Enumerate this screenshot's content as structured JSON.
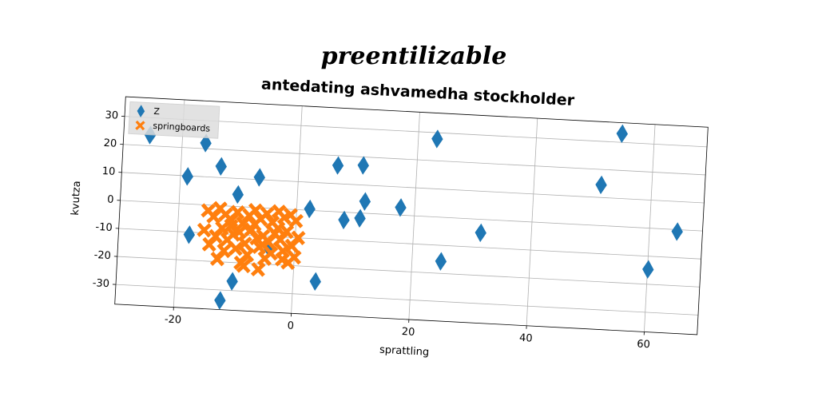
{
  "chart_data": {
    "type": "scatter",
    "suptitle": "preentilizable",
    "title": "antedating ashvamedha stockholder",
    "x_label": "sprattling",
    "y_label": "kvutza",
    "xlim": [
      -30,
      69
    ],
    "ylim": [
      -37,
      37
    ],
    "xticks": [
      -20,
      0,
      20,
      40,
      60
    ],
    "yticks": [
      -30,
      -20,
      -10,
      0,
      10,
      20,
      30
    ],
    "grid": true,
    "legend": "upper left",
    "series": [
      {
        "name": "Z",
        "color": "#1f77b4",
        "marker": "diamond",
        "x": [
          -25.5,
          -16,
          -18.8,
          -13.2,
          -10.1,
          -6.6,
          -18,
          -10.3,
          -12.2,
          -4.3,
          2.2,
          3.8,
          6.6,
          8.1,
          10.8,
          10.9,
          11.5,
          17.6,
          23.2,
          24.9,
          31.4,
          51.4,
          54.5,
          60.1,
          64.7
        ],
        "values": [
          23.8,
          22,
          9.8,
          14,
          4.3,
          10.8,
          -10.9,
          -26.7,
          -33.7,
          -14.3,
          0.5,
          -25.2,
          16.5,
          -2.8,
          -1.9,
          17,
          4.2,
          2.7,
          27.8,
          -15.7,
          -4.8,
          14.5,
          33.1,
          -14.7,
          -0.7
        ]
      },
      {
        "name": "springboards",
        "color": "#ff7f0e",
        "marker": "x",
        "x": [
          -15,
          -14,
          -13,
          -12,
          -11,
          -10,
          -9,
          -8,
          -7,
          -6,
          -5,
          -4,
          -3,
          -2,
          -1,
          0,
          -15.5,
          -13.5,
          -12.5,
          -11.5,
          -10.5,
          -9.5,
          -8.5,
          -7.5,
          -6.5,
          -5.5,
          -4.5,
          -3.5,
          -2.5,
          -1.5,
          -0.5,
          0.5,
          -14.5,
          -12,
          -10,
          -8,
          -6,
          -4,
          -2,
          0,
          -13,
          -9,
          -5,
          -1,
          -11,
          -7,
          -3,
          -8.5,
          -6,
          -2
        ],
        "values": [
          -2,
          -4,
          -1,
          -3,
          -5,
          -2,
          -6,
          -3,
          -1,
          -4,
          -2,
          -5,
          -1,
          -3,
          -2,
          -4,
          -9,
          -11,
          -8,
          -12,
          -10,
          -9,
          -13,
          -8,
          -11,
          -10,
          -12,
          -9,
          -11,
          -8,
          -13,
          -10,
          -14,
          -16,
          -15,
          -17,
          -14,
          -16,
          -15,
          -17,
          -19,
          -20,
          -18,
          -19,
          -7,
          -6,
          -7,
          -21,
          -22,
          -18
        ]
      }
    ]
  }
}
